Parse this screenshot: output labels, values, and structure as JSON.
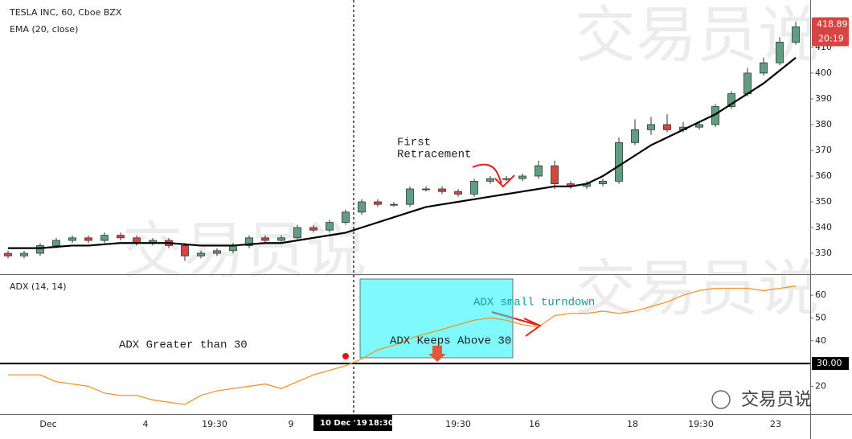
{
  "chart_data": [
    {
      "type": "candlestick",
      "title": "TESLA INC, 60, Cboe BZX",
      "up_color": "#5e9e82",
      "down_color": "#d64541",
      "watermark": "交易员说",
      "open": [
        330,
        329,
        330,
        333,
        335,
        336,
        335,
        337,
        336,
        334,
        335,
        333,
        329,
        330,
        331,
        333,
        336,
        335,
        336,
        340,
        339,
        342,
        346,
        350,
        349,
        349,
        355,
        355,
        354,
        353,
        358,
        359,
        359,
        360,
        364,
        357,
        356,
        357,
        358,
        373,
        378,
        380,
        378,
        379,
        380,
        387,
        392,
        400,
        404,
        412
      ],
      "high": [
        331,
        331,
        334,
        336,
        337,
        337,
        338,
        338,
        337,
        336,
        336,
        334,
        331,
        332,
        334,
        337,
        337,
        337,
        341,
        341,
        343,
        347,
        351,
        351,
        350,
        356,
        356,
        356,
        355,
        359,
        360,
        360,
        361,
        366,
        366,
        358,
        358,
        359,
        375,
        382,
        383,
        384,
        381,
        381,
        388,
        393,
        402,
        406,
        414,
        420
      ],
      "low": [
        328,
        328,
        329,
        332,
        334,
        334,
        334,
        335,
        333,
        333,
        332,
        327,
        328,
        329,
        330,
        332,
        334,
        334,
        335,
        338,
        338,
        341,
        345,
        348,
        348,
        348,
        354,
        353,
        352,
        352,
        357,
        358,
        358,
        359,
        355,
        355,
        355,
        356,
        357,
        372,
        376,
        377,
        377,
        378,
        379,
        386,
        391,
        399,
        403,
        411
      ],
      "close": [
        329,
        330,
        333,
        335,
        336,
        335,
        337,
        336,
        334,
        335,
        333,
        329,
        330,
        331,
        333,
        336,
        335,
        336,
        340,
        339,
        342,
        346,
        350,
        349,
        349,
        355,
        355,
        354,
        353,
        358,
        359,
        359,
        360,
        364,
        357,
        356,
        357,
        358,
        373,
        378,
        380,
        378,
        379,
        380,
        387,
        392,
        400,
        404,
        412,
        418
      ],
      "ema": {
        "name": "EMA (20, close)",
        "color": "#000000",
        "values": [
          332,
          332,
          332,
          332.5,
          333,
          333,
          333.5,
          334,
          334,
          334,
          334,
          333.5,
          333,
          333,
          333,
          333.5,
          334,
          334,
          335,
          336,
          337,
          338,
          340,
          342,
          344,
          346,
          348,
          349,
          350,
          351,
          352,
          353,
          354,
          355,
          356,
          356,
          357,
          360,
          364,
          368,
          372,
          375,
          378,
          381,
          384,
          388,
          392,
          396,
          401,
          406
        ]
      },
      "ylim": [
        322.2,
        428.4
      ],
      "yticks": [
        330,
        340,
        350,
        360,
        370,
        380,
        390,
        400,
        410
      ],
      "last_price": 418.89,
      "countdown": "20:19",
      "annotation": [
        "First",
        "Retracement"
      ],
      "x_labels": [
        "Dec",
        "4",
        "19:30",
        "9",
        "19:30",
        "16",
        "18",
        "19:30",
        "23"
      ],
      "crosshair_date": "10 Dec '19",
      "crosshair_time": "18:30"
    },
    {
      "type": "line",
      "title": "ADX (14, 14)",
      "color": "#f0952e",
      "values": [
        25,
        25,
        25,
        22,
        21,
        20,
        17,
        16,
        16,
        14,
        13,
        12,
        16,
        18,
        19,
        20,
        21,
        19,
        22,
        25,
        27,
        29,
        32,
        36,
        38,
        41,
        43,
        45,
        47,
        49,
        50,
        49,
        47,
        46,
        51,
        52,
        52,
        53,
        52,
        53,
        55,
        57,
        60,
        62,
        63,
        63,
        63,
        62,
        63,
        64
      ],
      "ylim": [
        7.8,
        68.5
      ],
      "yticks": [
        20,
        40,
        50,
        60
      ],
      "level": {
        "value": 30,
        "label": "30.00"
      },
      "annotations": [
        "ADX Greater than 30",
        "ADX Keeps Above 30",
        "ADX small turndown"
      ],
      "logo": "交易员说"
    }
  ]
}
